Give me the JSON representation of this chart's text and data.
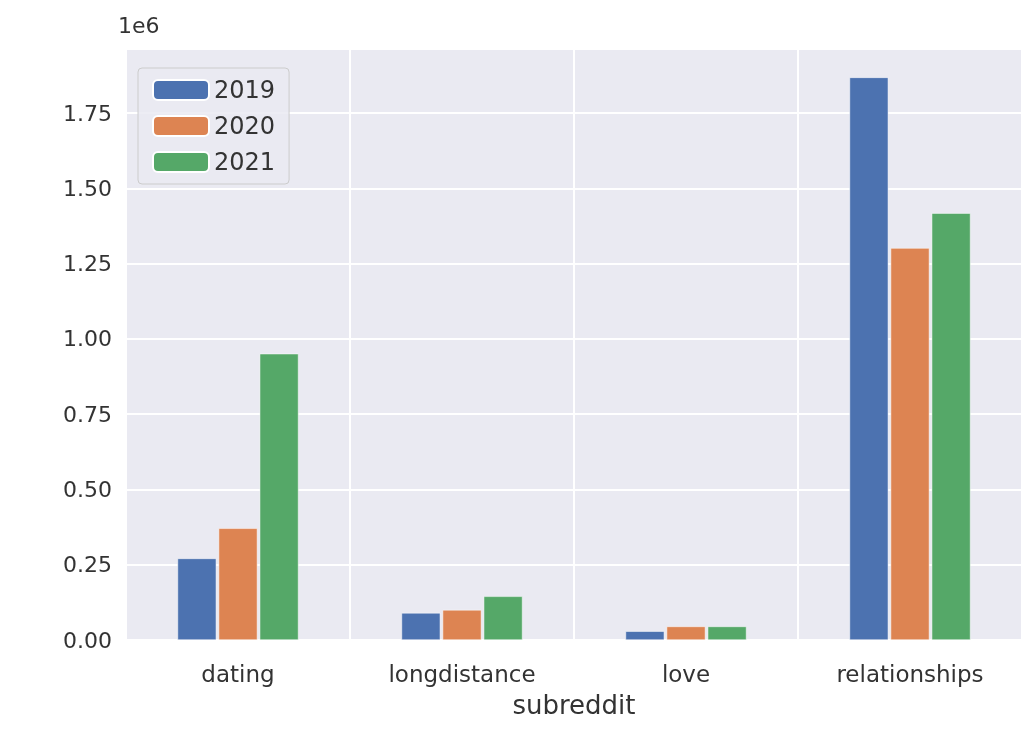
{
  "chart_data": {
    "type": "bar",
    "xlabel": "subreddit",
    "annotations": [
      "1e6"
    ],
    "categories": [
      "dating",
      "longdistance",
      "love",
      "relationships"
    ],
    "series": [
      {
        "name": "2019",
        "color": "#4c72b0",
        "values": [
          0.271,
          0.09,
          0.029,
          1.869
        ]
      },
      {
        "name": "2020",
        "color": "#dd8452",
        "values": [
          0.371,
          0.1,
          0.045,
          1.302
        ]
      },
      {
        "name": "2021",
        "color": "#55a868",
        "values": [
          0.951,
          0.145,
          0.045,
          1.418
        ]
      }
    ],
    "ylim": [
      0,
      1.96
    ],
    "yticks": [
      {
        "value": 0,
        "label": "0.00"
      },
      {
        "value": 0.25,
        "label": "0.25"
      },
      {
        "value": 0.5,
        "label": "0.50"
      },
      {
        "value": 0.75,
        "label": "0.75"
      },
      {
        "value": 1,
        "label": "1.00"
      },
      {
        "value": 1.25,
        "label": "1.25"
      },
      {
        "value": 1.5,
        "label": "1.50"
      },
      {
        "value": 1.75,
        "label": "1.75"
      }
    ],
    "grid": true,
    "legend": "top left"
  }
}
